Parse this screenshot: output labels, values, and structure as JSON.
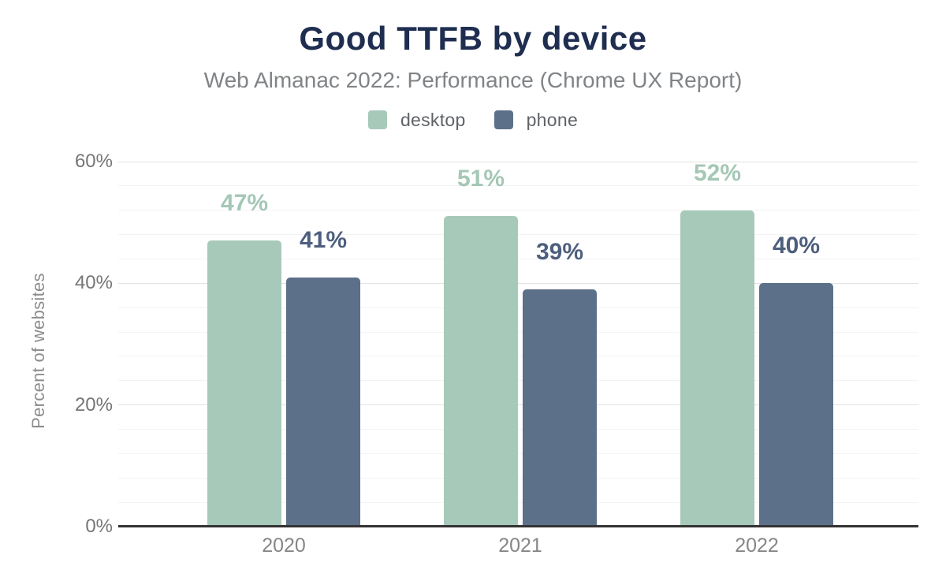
{
  "chart_data": {
    "type": "bar",
    "title": "Good TTFB by device",
    "subtitle": "Web Almanac 2022: Performance (Chrome UX Report)",
    "ylabel": "Percent of websites",
    "xlabel": "",
    "categories": [
      "2020",
      "2021",
      "2022"
    ],
    "series": [
      {
        "name": "desktop",
        "values": [
          47,
          51,
          52
        ],
        "color": "#a7c9b9",
        "label_color": "#a5c7b6"
      },
      {
        "name": "phone",
        "values": [
          41,
          39,
          40
        ],
        "color": "#5d7089",
        "label_color": "#4e5f7d"
      }
    ],
    "value_label_format": "{v}%",
    "ylim": [
      0,
      60
    ],
    "yticks": [
      0,
      20,
      40,
      60
    ],
    "ytick_format": "{v}%",
    "grid": {
      "show_minor": true,
      "minor_step": 4,
      "major_color": "#e2e2e2",
      "minor_color": "#f3f3f3"
    },
    "axis_line_color": "#333333",
    "legend_position": "top",
    "text_colors": {
      "title": "#1f2e50",
      "subtitle": "#808487",
      "legend": "#5f6368",
      "y_ticks": "#757575",
      "x_ticks": "#868686",
      "axis_title": "#8c8c8c"
    }
  }
}
